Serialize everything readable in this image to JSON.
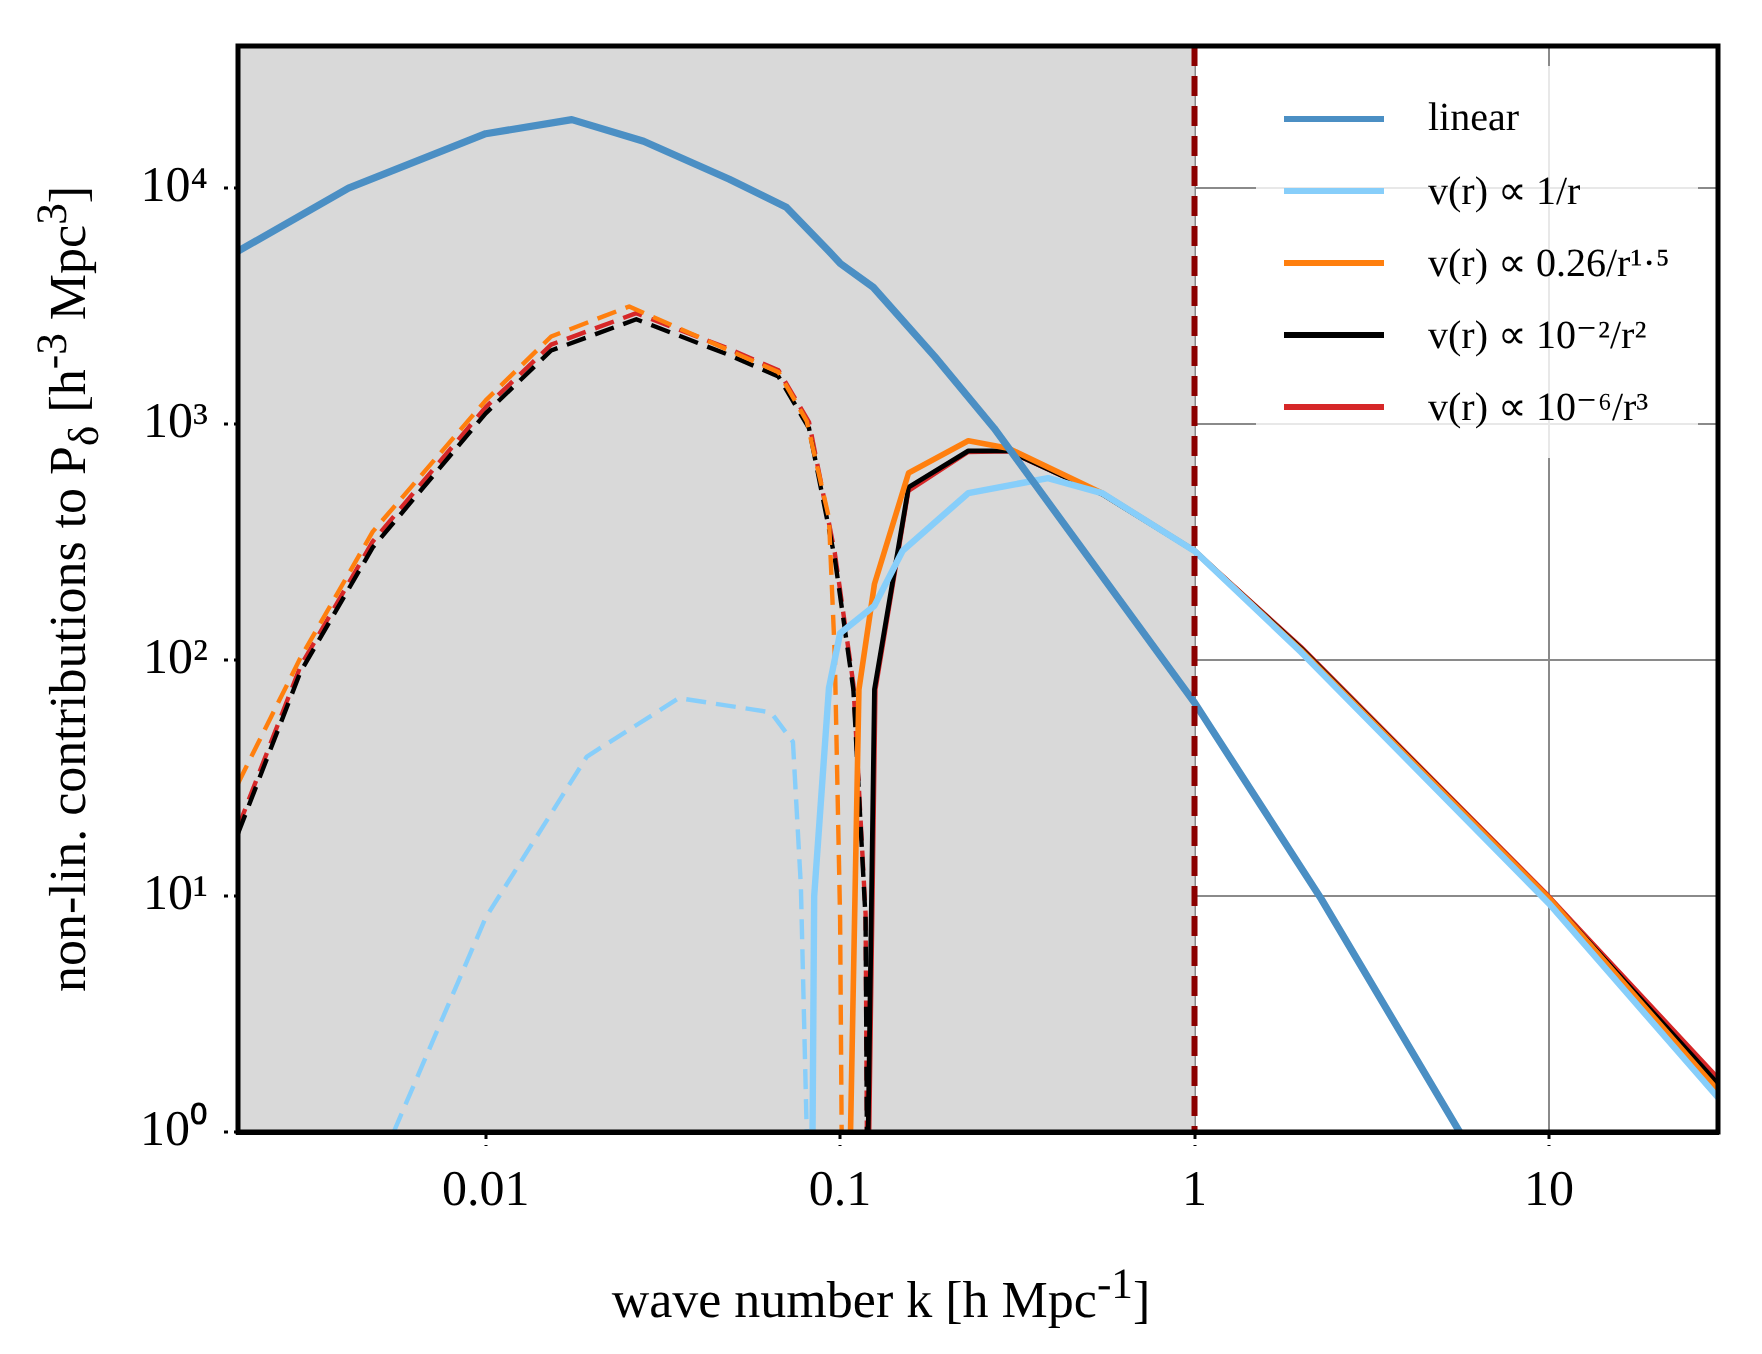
{
  "chart_data": {
    "type": "line",
    "xlabel": "wave number k [h Mpc$^{-1}$]",
    "ylabel": "non-lin. contributions to P$_{δ}$ [h$^{-3}$ Mpc$^{3}$]",
    "log": "xy",
    "xlim": [
      0.002,
      30
    ],
    "ylim": [
      1,
      40000
    ],
    "xticks": [
      0.01,
      0.1,
      1,
      10
    ],
    "yticks": [
      {
        "value": 1,
        "label": "10⁰"
      },
      {
        "value": 10,
        "label": "10¹"
      },
      {
        "value": 100,
        "label": "10²"
      },
      {
        "value": 1000,
        "label": "10³"
      },
      {
        "value": 10000,
        "label": "10⁴"
      }
    ],
    "grid": true,
    "legend": "top right",
    "marker": "none",
    "bands": [
      {
        "axis": "x",
        "from": 0.002,
        "to": 1,
        "color": "#d9d9d9"
      }
    ],
    "ref_lines": [
      {
        "axis": "x",
        "value": 1,
        "color": "#8b0000",
        "line_style": "dashed"
      }
    ],
    "series": [
      {
        "name": "linear",
        "color": "#4b8fc4",
        "line_style": "solid",
        "x": [
          0.002,
          0.0041,
          0.01,
          0.0175,
          0.0279,
          0.0487,
          0.0705,
          0.093,
          0.1,
          0.124,
          0.185,
          0.272,
          1,
          2.28,
          5.6
        ],
        "values": [
          5400,
          10000,
          17000,
          19500,
          15800,
          10900,
          8300,
          5400,
          4800,
          3800,
          1930,
          960,
          66,
          9.7,
          1
        ]
      },
      {
        "name": "v(r) ∝ 1/r",
        "color": "#87cefa",
        "line_style": "solid",
        "x": [
          0.0836,
          0.0845,
          0.093,
          0.1,
          0.125,
          0.15,
          0.23,
          0.386,
          0.548,
          1,
          2,
          10,
          30
        ],
        "values": [
          1,
          10,
          76,
          130,
          170,
          290,
          510,
          590,
          510,
          290,
          108,
          9.3,
          1.4
        ]
      },
      {
        "name": "v(r) ∝ 0.26/r¹·⁵",
        "color": "#ff7f0e",
        "line_style": "solid",
        "x": [
          0.107,
          0.113,
          0.125,
          0.156,
          0.23,
          0.298,
          0.548,
          1,
          2,
          10.2,
          30
        ],
        "values": [
          1,
          75,
          210,
          620,
          850,
          790,
          510,
          290,
          110,
          9.5,
          1.5
        ]
      },
      {
        "name": "v(r) ∝ 10⁻²/r²",
        "color": "#000000",
        "line_style": "solid",
        "x": [
          0.12,
          0.125,
          0.156,
          0.23,
          0.298,
          0.548,
          1,
          2,
          10,
          30
        ],
        "values": [
          1,
          75,
          540,
          770,
          770,
          505,
          290,
          112,
          9.8,
          1.6
        ]
      },
      {
        "name": "v(r) ∝ 10⁻⁶/r³",
        "color": "#d62728",
        "line_style": "solid",
        "x": [
          0.121,
          0.126,
          0.156,
          0.23,
          0.298,
          0.548,
          1,
          2,
          10,
          30
        ],
        "values": [
          1,
          75,
          520,
          760,
          765,
          505,
          292,
          114,
          10,
          1.7
        ]
      },
      {
        "color": "#87cefa",
        "line_style": "dashed",
        "x": [
          0.0055,
          0.01,
          0.0193,
          0.0351,
          0.0638,
          0.0736,
          0.0775,
          0.0805
        ],
        "values": [
          1,
          8.1,
          39,
          69,
          60,
          45,
          11,
          1
        ]
      },
      {
        "color": "#ff7f0e",
        "line_style": "dashed",
        "x": [
          0.002,
          0.003,
          0.0048,
          0.01,
          0.0153,
          0.0254,
          0.0487,
          0.067,
          0.0805,
          0.093,
          0.0966,
          0.1,
          0.101
        ],
        "values": [
          30,
          102,
          350,
          1260,
          2350,
          3150,
          2050,
          1660,
          1030,
          400,
          105,
          8,
          1
        ]
      },
      {
        "color": "#000000",
        "line_style": "dashed",
        "x": [
          0.002,
          0.003,
          0.0048,
          0.01,
          0.0153,
          0.0266,
          0.0487,
          0.067,
          0.0817,
          0.0966,
          0.109,
          0.118,
          0.119
        ],
        "values": [
          18.4,
          89,
          300,
          1110,
          2050,
          2780,
          1960,
          1590,
          960,
          270,
          75,
          8,
          1
        ]
      },
      {
        "color": "#d62728",
        "line_style": "dashed",
        "x": [
          0.002,
          0.003,
          0.0048,
          0.01,
          0.0153,
          0.0266,
          0.0487,
          0.067,
          0.0817,
          0.0966,
          0.109,
          0.118,
          0.119
        ],
        "values": [
          19.5,
          94,
          318,
          1180,
          2170,
          2950,
          2080,
          1690,
          1020,
          285,
          79,
          8.4,
          1
        ]
      }
    ]
  }
}
